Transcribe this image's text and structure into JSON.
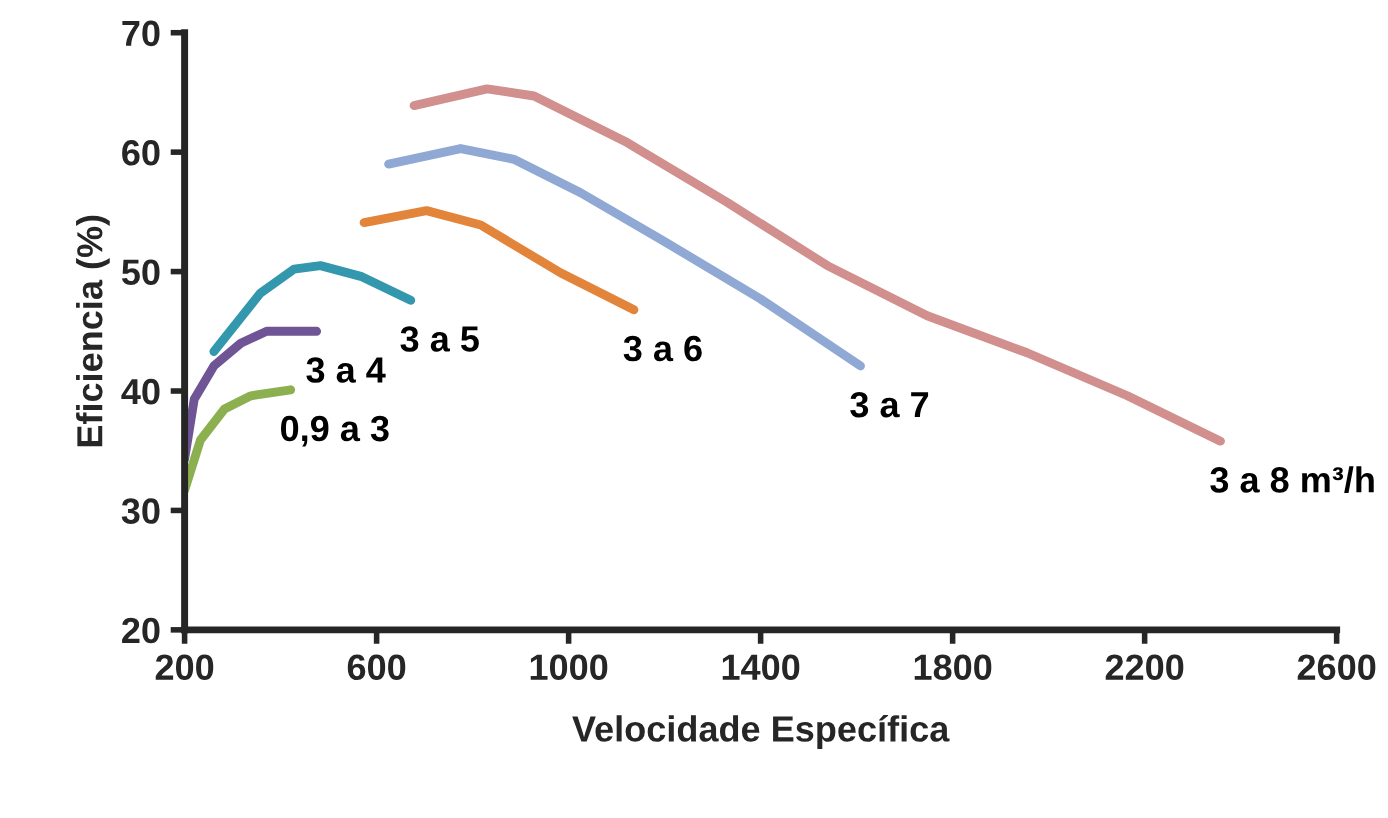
{
  "chart_data": {
    "type": "line",
    "xlabel": "Velocidade Específica",
    "ylabel": "Eficiencia (%)",
    "xlim": [
      200,
      2600
    ],
    "xticks": [
      200,
      600,
      1000,
      1400,
      1800,
      2200,
      2600
    ],
    "ylim": [
      20,
      70
    ],
    "yticks": [
      20,
      30,
      40,
      50,
      60,
      70
    ],
    "grid": false,
    "legend": false,
    "marker": "none",
    "line_style": "solid",
    "series": [
      {
        "name": "0,9 a 3",
        "color": "#8cb050",
        "x": [
          200,
          233,
          283,
          338,
          421
        ],
        "values": [
          31.7,
          35.9,
          38.5,
          39.6,
          40.1
        ]
      },
      {
        "name": "3 a 4",
        "color": "#6f5596",
        "x": [
          200,
          220,
          261,
          317,
          371,
          475
        ],
        "values": [
          34.3,
          39.3,
          42.1,
          44,
          45,
          45
        ]
      },
      {
        "name": "3 a 5",
        "color": "#3397ae",
        "x": [
          261,
          358,
          428,
          483,
          567,
          671
        ],
        "values": [
          43.3,
          48.2,
          50.2,
          50.5,
          49.6,
          47.6
        ]
      },
      {
        "name": "3 a 6",
        "color": "#e3843b",
        "x": [
          574,
          704,
          817,
          983,
          1136
        ],
        "values": [
          54.1,
          55.1,
          53.9,
          49.9,
          46.8
        ]
      },
      {
        "name": "3 a 7",
        "color": "#8fa9d4",
        "x": [
          625,
          775,
          886,
          1025,
          1192,
          1400,
          1608
        ],
        "values": [
          59.0,
          60.3,
          59.4,
          56.6,
          52.7,
          47.7,
          42.1
        ]
      },
      {
        "name": "3 a 8 m³/h",
        "color": "#d18f8e",
        "x": [
          678,
          830,
          928,
          1122,
          1330,
          1539,
          1747,
          1955,
          2164,
          2358
        ],
        "values": [
          63.9,
          65.3,
          64.7,
          60.8,
          55.8,
          50.5,
          46.3,
          43.2,
          39.6,
          35.8
        ]
      }
    ]
  }
}
